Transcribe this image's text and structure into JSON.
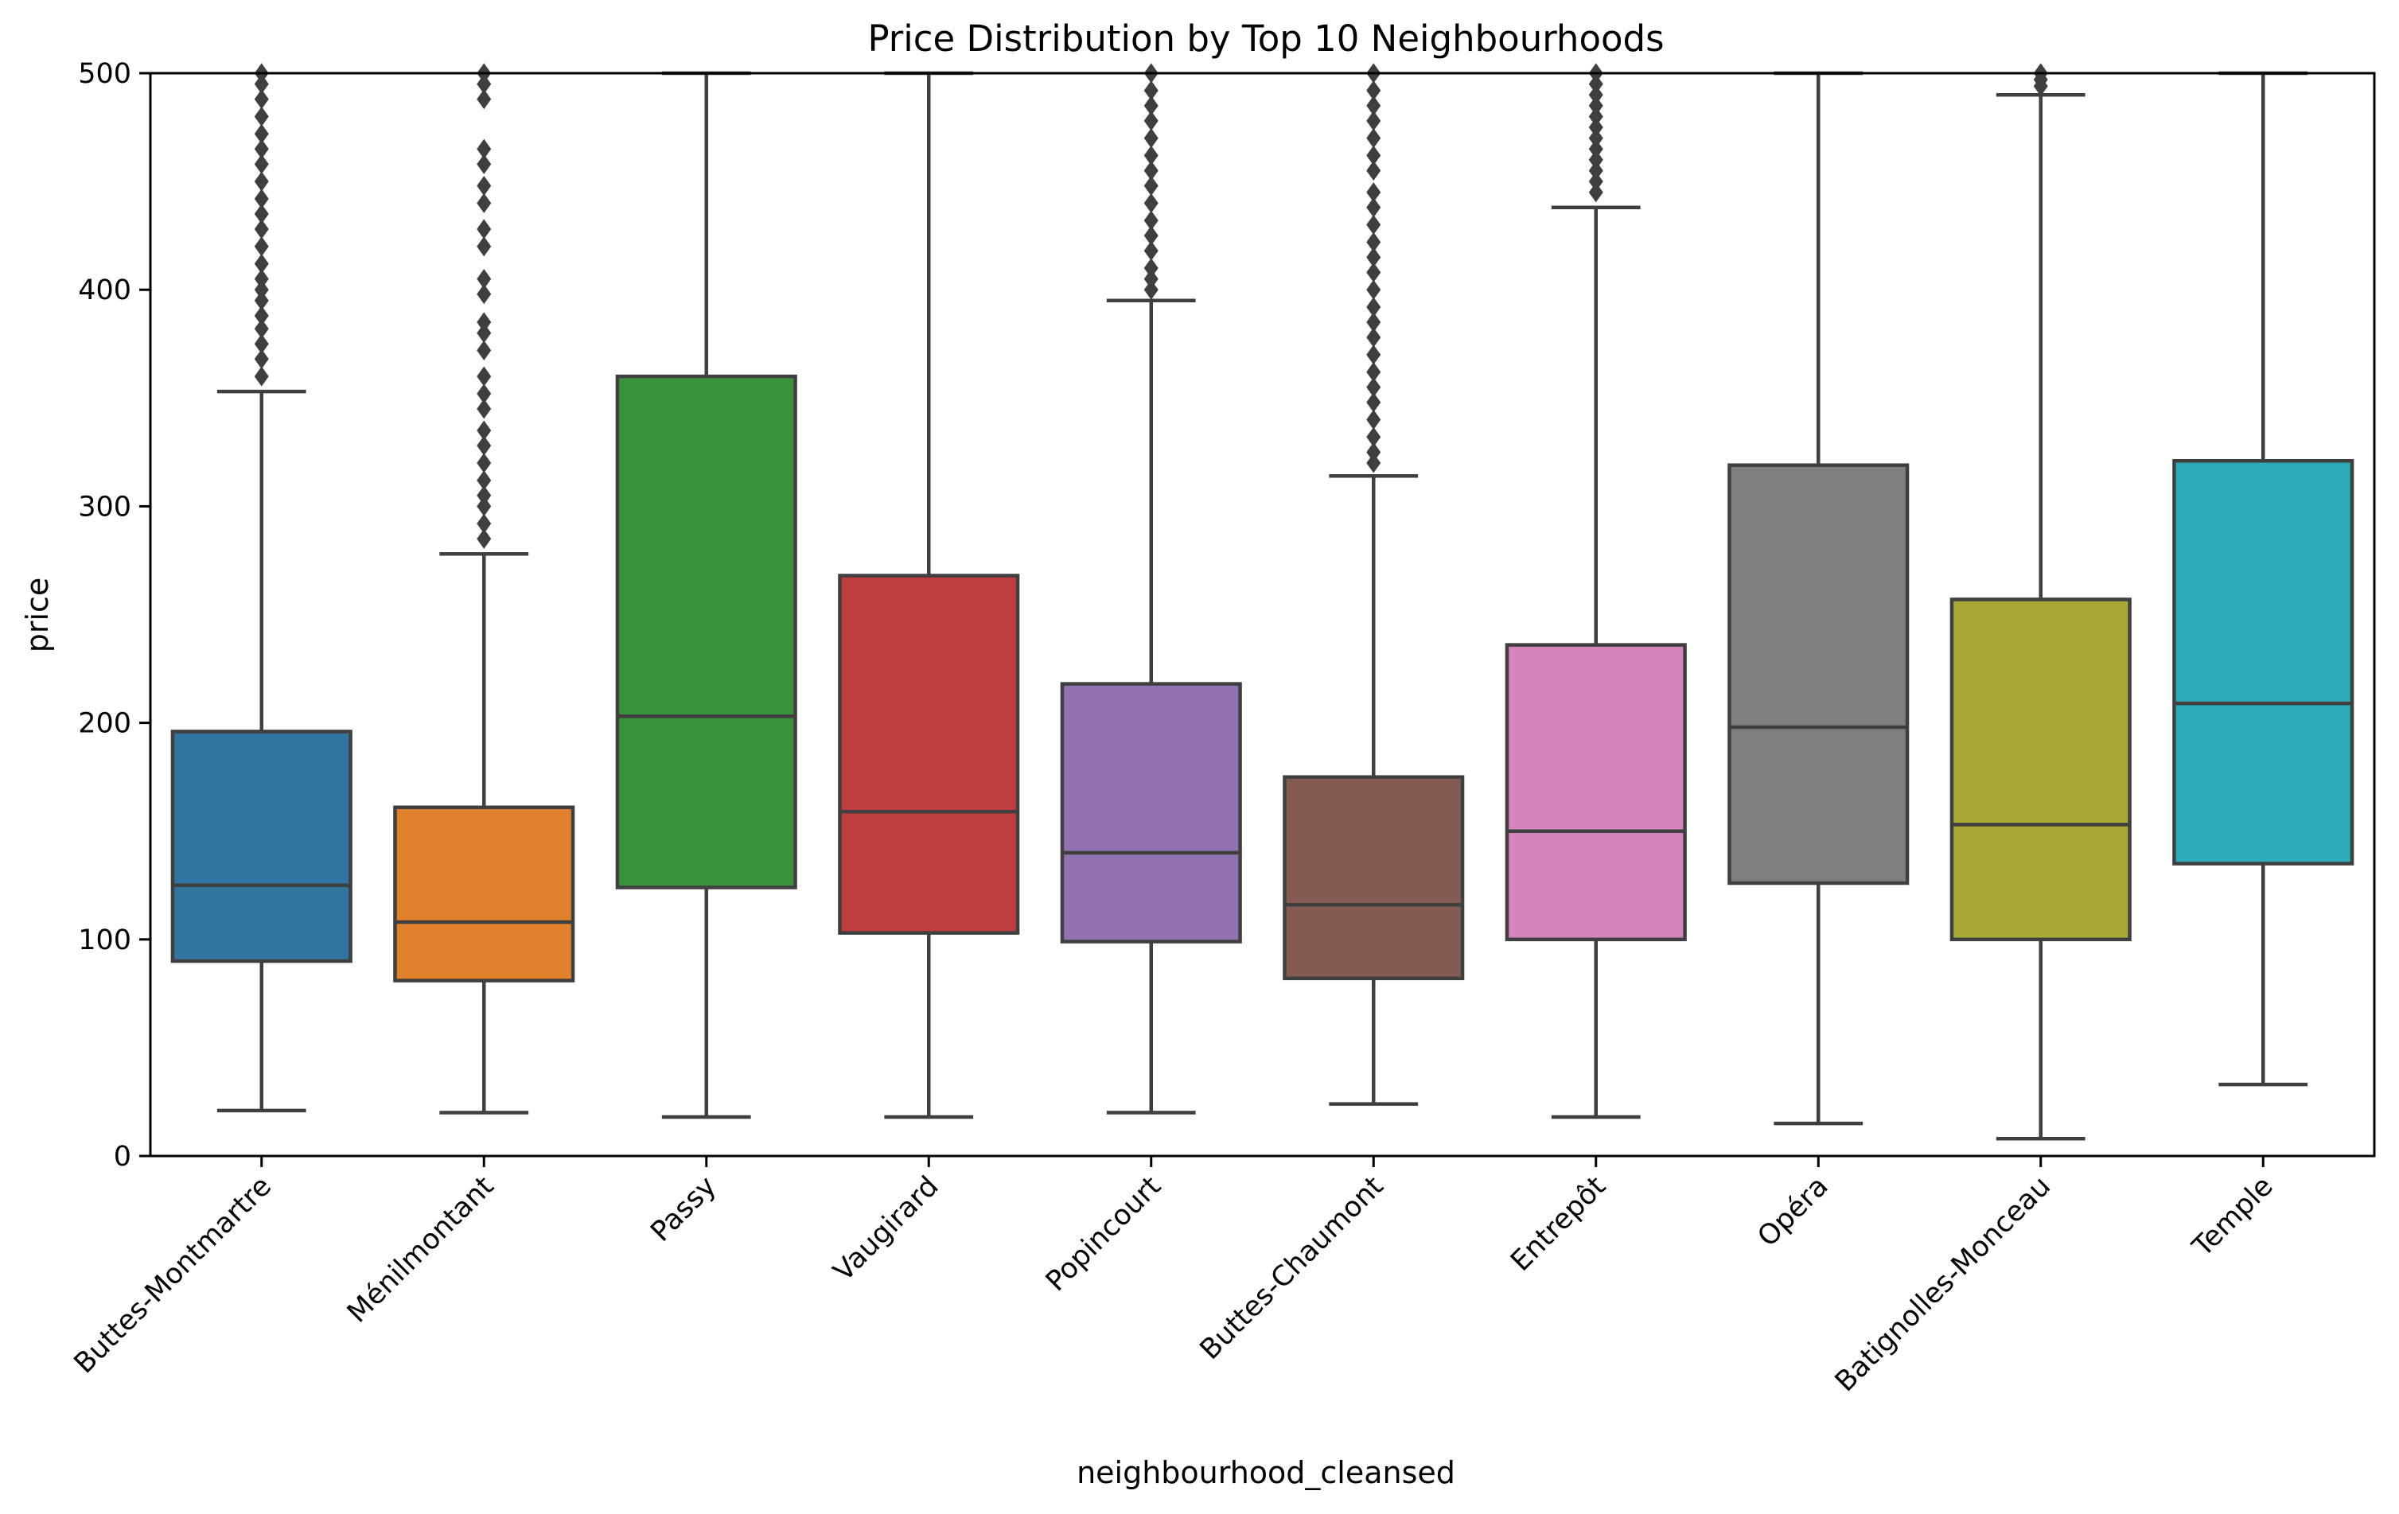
{
  "chart_data": {
    "type": "box",
    "title": "Price Distribution by Top 10 Neighbourhoods",
    "xlabel": "neighbourhood_cleansed",
    "ylabel": "price",
    "ylim": [
      0,
      500
    ],
    "yticks": [
      0,
      100,
      200,
      300,
      400,
      500
    ],
    "grid": false,
    "legend": "none",
    "categories": [
      "Buttes-Montmartre",
      "Ménilmontant",
      "Passy",
      "Vaugirard",
      "Popincourt",
      "Buttes-Chaumont",
      "Entrepôt",
      "Opéra",
      "Batignolles-Monceau",
      "Temple"
    ],
    "colors": [
      "#3274a1",
      "#e1812c",
      "#3a923a",
      "#c03d3e",
      "#9372b2",
      "#845b53",
      "#d684bd",
      "#7f7f7f",
      "#a9aa35",
      "#2eabb8"
    ],
    "boxes": [
      {
        "q1": 90,
        "median": 125,
        "q3": 196,
        "whisker_low": 21,
        "whisker_high": 353,
        "outliers": [
          360,
          368,
          375,
          382,
          388,
          395,
          400,
          405,
          412,
          420,
          428,
          435,
          442,
          450,
          458,
          465,
          472,
          480,
          488,
          495,
          500
        ]
      },
      {
        "q1": 81,
        "median": 108,
        "q3": 161,
        "whisker_low": 20,
        "whisker_high": 278,
        "outliers": [
          285,
          292,
          300,
          305,
          312,
          320,
          328,
          335,
          345,
          352,
          360,
          372,
          380,
          385,
          398,
          405,
          420,
          428,
          440,
          448,
          458,
          465,
          488,
          495,
          500
        ]
      },
      {
        "q1": 124,
        "median": 203,
        "q3": 360,
        "whisker_low": 18,
        "whisker_high": 500,
        "outliers": []
      },
      {
        "q1": 103,
        "median": 159,
        "q3": 268,
        "whisker_low": 18,
        "whisker_high": 500,
        "outliers": []
      },
      {
        "q1": 99,
        "median": 140,
        "q3": 218,
        "whisker_low": 20,
        "whisker_high": 395,
        "outliers": [
          400,
          405,
          410,
          418,
          425,
          432,
          440,
          448,
          455,
          462,
          470,
          478,
          485,
          492,
          500
        ]
      },
      {
        "q1": 82,
        "median": 116,
        "q3": 175,
        "whisker_low": 24,
        "whisker_high": 314,
        "outliers": [
          320,
          325,
          332,
          340,
          348,
          355,
          362,
          370,
          378,
          385,
          392,
          400,
          408,
          415,
          422,
          430,
          438,
          445,
          455,
          462,
          470,
          478,
          485,
          492,
          500
        ]
      },
      {
        "q1": 100,
        "median": 150,
        "q3": 236,
        "whisker_low": 18,
        "whisker_high": 438,
        "outliers": [
          445,
          450,
          455,
          460,
          465,
          470,
          475,
          480,
          485,
          490,
          495,
          500
        ]
      },
      {
        "q1": 126,
        "median": 198,
        "q3": 319,
        "whisker_low": 15,
        "whisker_high": 500,
        "outliers": []
      },
      {
        "q1": 100,
        "median": 153,
        "q3": 257,
        "whisker_low": 8,
        "whisker_high": 490,
        "outliers": [
          494,
          497,
          500
        ]
      },
      {
        "q1": 135,
        "median": 209,
        "q3": 321,
        "whisker_low": 33,
        "whisker_high": 500,
        "outliers": []
      }
    ]
  }
}
